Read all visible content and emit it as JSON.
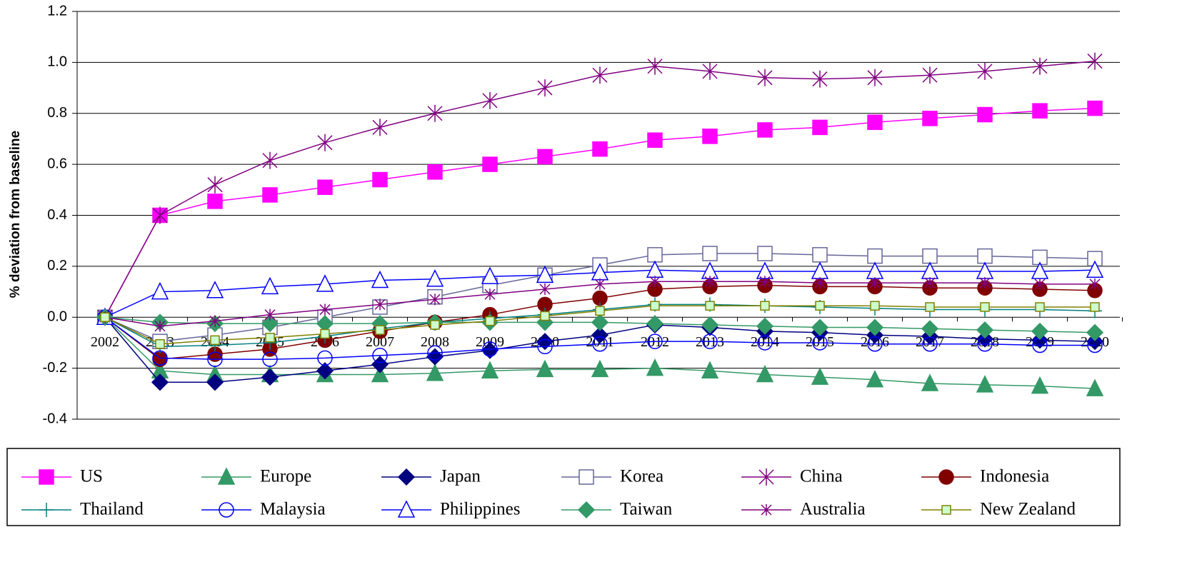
{
  "chart_data": {
    "type": "line",
    "y_label": "% deviation from baseline",
    "categories": [
      "2002",
      "2003",
      "2004",
      "2005",
      "2006",
      "2007",
      "2008",
      "2009",
      "2010",
      "2011",
      "2012",
      "2013",
      "2014",
      "2015",
      "2016",
      "2017",
      "2018",
      "2019",
      "2020"
    ],
    "ylim": [
      -0.4,
      1.2
    ],
    "yticks": [
      -0.4,
      -0.2,
      {
        "value": 0,
        "label": "0.0"
      },
      0.2,
      0.4,
      0.6,
      0.8,
      {
        "value": 1,
        "label": "1.0"
      },
      1.2
    ],
    "grid": true,
    "legend": "bottom",
    "series": [
      {
        "name": "US",
        "color": "#ff00ff",
        "marker": "square",
        "values": [
          0,
          0.4,
          0.455,
          0.48,
          0.51,
          0.54,
          0.57,
          0.6,
          0.63,
          0.66,
          0.695,
          0.71,
          0.735,
          0.745,
          0.765,
          0.78,
          0.795,
          0.81,
          0.82
        ]
      },
      {
        "name": "Europe",
        "color": "#339966",
        "marker": "triangle",
        "values": [
          0,
          -0.21,
          -0.225,
          -0.225,
          -0.225,
          -0.225,
          -0.22,
          -0.21,
          -0.205,
          -0.205,
          -0.2,
          -0.21,
          -0.225,
          -0.235,
          -0.245,
          -0.26,
          -0.265,
          -0.27,
          -0.28
        ]
      },
      {
        "name": "Japan",
        "color": "#000080",
        "marker": "diamond",
        "values": [
          0,
          -0.255,
          -0.255,
          -0.235,
          -0.21,
          -0.185,
          -0.155,
          -0.13,
          -0.095,
          -0.07,
          -0.03,
          -0.04,
          -0.055,
          -0.06,
          -0.07,
          -0.075,
          -0.085,
          -0.09,
          -0.095
        ]
      },
      {
        "name": "Korea",
        "color": "#666699",
        "marker": "square-open",
        "values": [
          0,
          -0.095,
          -0.07,
          -0.04,
          0,
          0.04,
          0.08,
          0.125,
          0.165,
          0.205,
          0.245,
          0.25,
          0.25,
          0.245,
          0.24,
          0.24,
          0.24,
          0.235,
          0.23
        ]
      },
      {
        "name": "China",
        "color": "#800080",
        "marker": "asterisk",
        "values": [
          0,
          0.4,
          0.52,
          0.615,
          0.685,
          0.745,
          0.8,
          0.85,
          0.9,
          0.95,
          0.985,
          0.965,
          0.94,
          0.935,
          0.94,
          0.95,
          0.965,
          0.985,
          1.005
        ]
      },
      {
        "name": "Indonesia",
        "color": "#800000",
        "marker": "circle",
        "values": [
          0,
          -0.165,
          -0.145,
          -0.125,
          -0.09,
          -0.055,
          -0.02,
          0.01,
          0.05,
          0.075,
          0.11,
          0.12,
          0.125,
          0.12,
          0.12,
          0.115,
          0.115,
          0.11,
          0.105
        ]
      },
      {
        "name": "Thailand",
        "color": "#008080",
        "marker": "plus",
        "values": [
          0,
          -0.115,
          -0.11,
          -0.1,
          -0.075,
          -0.045,
          -0.02,
          -0.005,
          0.01,
          0.03,
          0.05,
          0.05,
          0.045,
          0.04,
          0.035,
          0.03,
          0.03,
          0.03,
          0.025
        ]
      },
      {
        "name": "Malaysia",
        "color": "#0000ff",
        "marker": "circle-open",
        "values": [
          0,
          -0.16,
          -0.165,
          -0.165,
          -0.16,
          -0.15,
          -0.14,
          -0.125,
          -0.115,
          -0.105,
          -0.095,
          -0.095,
          -0.1,
          -0.1,
          -0.105,
          -0.105,
          -0.105,
          -0.11,
          -0.11
        ]
      },
      {
        "name": "Philippines",
        "color": "#0000ff",
        "marker": "triangle-open",
        "values": [
          0,
          0.1,
          0.105,
          0.12,
          0.13,
          0.145,
          0.15,
          0.16,
          0.165,
          0.175,
          0.185,
          0.18,
          0.18,
          0.18,
          0.18,
          0.18,
          0.18,
          0.18,
          0.185
        ]
      },
      {
        "name": "Taiwan",
        "color": "#339966",
        "marker": "diamond",
        "values": [
          0,
          -0.02,
          -0.025,
          -0.025,
          -0.025,
          -0.025,
          -0.02,
          -0.02,
          -0.02,
          -0.02,
          -0.025,
          -0.03,
          -0.035,
          -0.04,
          -0.04,
          -0.045,
          -0.05,
          -0.055,
          -0.06
        ]
      },
      {
        "name": "Australia",
        "color": "#800080",
        "marker": "star",
        "values": [
          0,
          -0.035,
          -0.015,
          0.01,
          0.03,
          0.05,
          0.07,
          0.09,
          0.11,
          0.13,
          0.14,
          0.14,
          0.14,
          0.135,
          0.135,
          0.135,
          0.135,
          0.13,
          0.13
        ]
      },
      {
        "name": "New Zealand",
        "color": "#808000",
        "marker": "square-small",
        "values": [
          0,
          -0.105,
          -0.09,
          -0.08,
          -0.065,
          -0.05,
          -0.03,
          -0.015,
          0.005,
          0.025,
          0.045,
          0.045,
          0.045,
          0.045,
          0.045,
          0.04,
          0.04,
          0.04,
          0.04
        ]
      }
    ]
  }
}
